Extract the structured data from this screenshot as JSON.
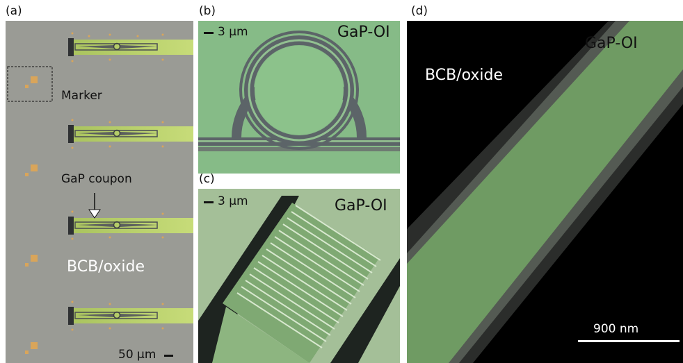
{
  "panels": {
    "a": {
      "letter": "(a)",
      "labels": {
        "marker": "Marker",
        "gap_coupon": "GaP coupon",
        "bcb_oxide": "BCB/oxide",
        "scale": "50 μm"
      },
      "colors": {
        "background": "#9a9b95",
        "waveguide": "#b8cf6a",
        "marker_pad": "#d9a55a"
      }
    },
    "b": {
      "letter": "(b)",
      "labels": {
        "gap_oi": "GaP-OI",
        "scale": "3 μm"
      },
      "colors": {
        "background": "#86bb87",
        "trench": "#5c6468"
      }
    },
    "c": {
      "letter": "(c)",
      "labels": {
        "gap_oi": "GaP-OI",
        "scale": "3 μm"
      },
      "colors": {
        "background": "#9fbd93",
        "waveguide": "#7fa973"
      }
    },
    "d": {
      "letter": "(d)",
      "labels": {
        "gap_oi": "GaP-OI",
        "bcb_oxide": "BCB/oxide",
        "scale": "900 nm"
      },
      "colors": {
        "background": "#000000",
        "waveguide": "#6f9b63"
      }
    }
  }
}
